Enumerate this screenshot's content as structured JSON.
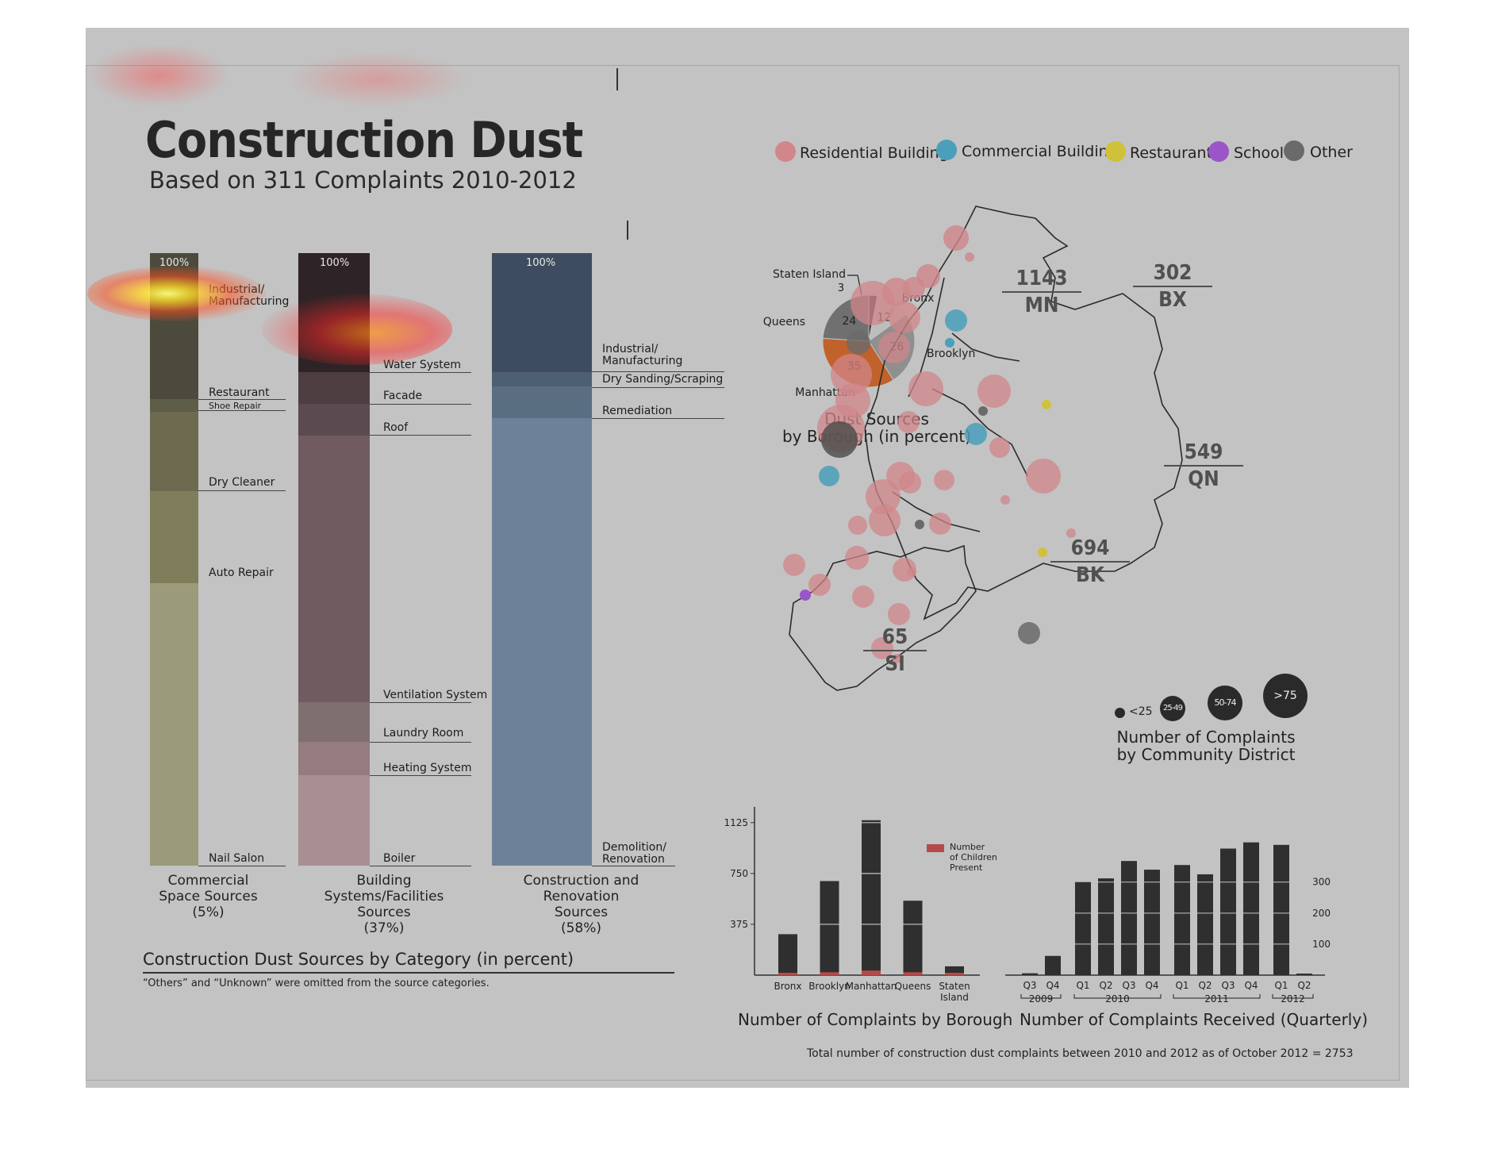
{
  "header": {
    "title": "Construction Dust",
    "subtitle": "Based on 311 Complaints 2010-2012"
  },
  "legend": {
    "items": [
      {
        "label": "Residential Building",
        "color": "#d0868a"
      },
      {
        "label": "Commercial Building",
        "color": "#4a9fba"
      },
      {
        "label": "Restaurant",
        "color": "#cfc23a"
      },
      {
        "label": "School",
        "color": "#9b55c9"
      },
      {
        "label": "Other",
        "color": "#6a6a6a"
      }
    ]
  },
  "category_section": {
    "title": "Construction Dust Sources by Category (in percent)",
    "note": "“Others” and “Unknown” were omitted from the source categories.",
    "top_label": "100%",
    "columns": [
      {
        "caption": [
          "Commercial",
          "Space Sources",
          "(5%)"
        ],
        "share": 5,
        "segments": [
          "Industrial/ Manufacturing",
          "Restaurant",
          "Shoe Repair",
          "Dry Cleaner",
          "Auto Repair",
          "Nail Salon"
        ]
      },
      {
        "caption": [
          "Building Systems/Facilities",
          "Sources",
          "(37%)"
        ],
        "share": 37,
        "segments": [
          "Water System",
          "Facade",
          "Roof",
          "Ventilation System",
          "Laundry Room",
          "Heating System",
          "Boiler"
        ]
      },
      {
        "caption": [
          "Construction and Renovation",
          "Sources",
          "(58%)"
        ],
        "share": 58,
        "segments": [
          "Industrial/ Manufacturing",
          "Dry Sanding/Scraping",
          "Remediation",
          "Demolition/ Renovation"
        ]
      }
    ]
  },
  "pie_section": {
    "caption": [
      "Dust Sources",
      "by Borough (in percent)"
    ]
  },
  "map_section": {
    "boroughs": [
      {
        "value": "1143",
        "abbr": "MN"
      },
      {
        "value": "302",
        "abbr": "BX"
      },
      {
        "value": "549",
        "abbr": "QN"
      },
      {
        "value": "694",
        "abbr": "BK"
      },
      {
        "value": "65",
        "abbr": "SI"
      }
    ],
    "size_legend": [
      "<25",
      "25-49",
      "50-74",
      ">75"
    ],
    "caption": [
      "Number of Complaints",
      "by Community District"
    ]
  },
  "borough_bar": {
    "caption": "Number of Complaints by Borough",
    "legend_label": [
      "Number",
      "of Children",
      "Present"
    ]
  },
  "quarterly_bar": {
    "caption": "Number of Complaints Received (Quarterly)",
    "year_labels": [
      "2009",
      "2010",
      "2011",
      "2012"
    ]
  },
  "footer": {
    "total_note": "Total number of construction dust complaints between 2010 and 2012 as of October 2012 = 2753"
  },
  "chart_data": [
    {
      "type": "pie",
      "title": "Dust Sources by Borough (in percent)",
      "categories": [
        "Staten Island",
        "Bronx",
        "Brooklyn",
        "Manhattan",
        "Queens"
      ],
      "values": [
        3,
        12,
        26,
        35,
        24
      ],
      "labels": [
        {
          "name": "Staten Island",
          "value": "3"
        },
        {
          "name": "Bronx",
          "value": "12"
        },
        {
          "name": "Brooklyn",
          "value": "26"
        },
        {
          "name": "Manhattan",
          "value": "35"
        },
        {
          "name": "Queens",
          "value": "24"
        }
      ],
      "colors": [
        "#3a3a3a",
        "#bdbdbd",
        "#8f8f8f",
        "#c0622a",
        "#707070"
      ]
    },
    {
      "type": "bar",
      "title": "Number of Complaints by Borough",
      "categories": [
        "Bronx",
        "Brooklyn",
        "Manhattan",
        "Queens",
        "Staten Island"
      ],
      "category_labels": [
        [
          "Bronx"
        ],
        [
          "Brooklyn"
        ],
        [
          "Manhattan"
        ],
        [
          "Queens"
        ],
        [
          "Staten",
          "Island"
        ]
      ],
      "series": [
        {
          "name": "Number of Children Present",
          "values": [
            10,
            18,
            28,
            18,
            2
          ],
          "color": "#b4494a"
        },
        {
          "values": [
            302,
            694,
            1143,
            549,
            65
          ],
          "color": "#2f2f2f"
        }
      ],
      "ytick_labels": [
        "375",
        "750",
        "1125"
      ],
      "ylim": [
        0,
        1200
      ]
    },
    {
      "type": "bar",
      "title": "Number of Complaints Received (Quarterly)",
      "categories": [
        "Q3",
        "Q4",
        "Q1",
        "Q2",
        "Q3",
        "Q4",
        "Q1",
        "Q2",
        "Q3",
        "Q4",
        "Q1",
        "Q2"
      ],
      "years": [
        "2009",
        "2009",
        "2010",
        "2010",
        "2010",
        "2010",
        "2011",
        "2011",
        "2011",
        "2011",
        "2012",
        "2012"
      ],
      "values": [
        6,
        62,
        300,
        312,
        368,
        340,
        355,
        325,
        408,
        428,
        420,
        5
      ],
      "ytick_labels": [
        "100",
        "200",
        "300"
      ],
      "ylim": [
        0,
        440
      ]
    }
  ]
}
